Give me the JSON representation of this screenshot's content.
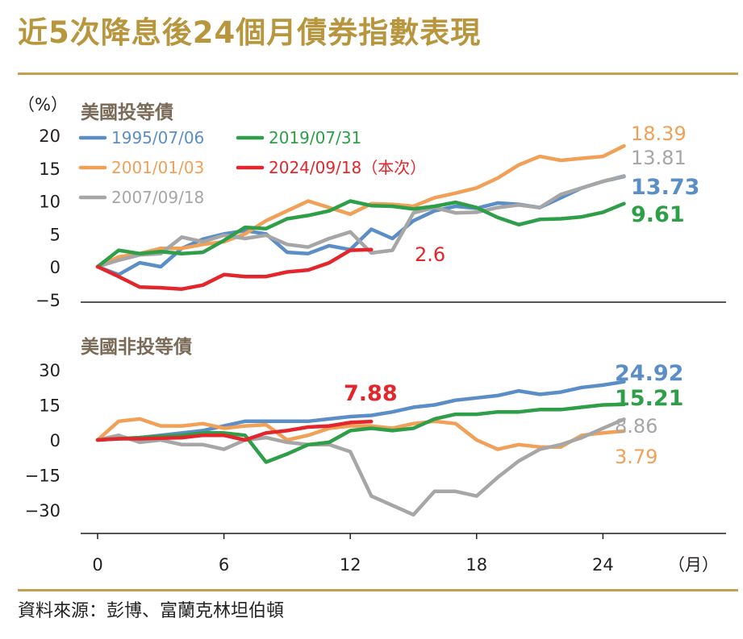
{
  "title": "近5次降息後24個月債券指數表現",
  "source": "資料來源：彭博、富蘭克林坦伯頓",
  "colors": {
    "s1995": "#5b8ec7",
    "s2001": "#f0a057",
    "s2007": "#a6a6a6",
    "s2019": "#2e9e48",
    "s2024": "#e3262b",
    "title": "#b8963e"
  },
  "chart_data": [
    {
      "type": "line",
      "title": "美國投等債",
      "ylabel": "（%）",
      "xlabel": "（月）",
      "xlim": [
        -1,
        28
      ],
      "ylim": [
        -7,
        20
      ],
      "yticks": [
        "20",
        "15",
        "10",
        "5",
        "0",
        "−5"
      ],
      "ytick_values": [
        20,
        15,
        10,
        5,
        0,
        -5
      ],
      "legend_placement": "top-left",
      "series": [
        {
          "name": "1995/07/06",
          "color": "#5b8ec7",
          "end_label": "13.73",
          "end_bold": true,
          "x": [
            0,
            1,
            2,
            3,
            4,
            5,
            6,
            7,
            8,
            9,
            10,
            11,
            12,
            13,
            14,
            15,
            16,
            17,
            18,
            19,
            20,
            21,
            22,
            23,
            24,
            25
          ],
          "y": [
            0,
            -1.2,
            0.6,
            0,
            2.8,
            4.2,
            5,
            5.5,
            5,
            2.2,
            2,
            3.2,
            2.6,
            5.7,
            4.3,
            7,
            8.5,
            9.2,
            8.9,
            9.7,
            9.5,
            9,
            10.5,
            12,
            13,
            13.73
          ]
        },
        {
          "name": "2001/01/03",
          "color": "#f0a057",
          "end_label": "18.39",
          "end_bold": false,
          "x": [
            0,
            1,
            2,
            3,
            4,
            5,
            6,
            7,
            8,
            9,
            10,
            11,
            12,
            13,
            14,
            15,
            16,
            17,
            18,
            19,
            20,
            21,
            22,
            23,
            24,
            25
          ],
          "y": [
            0,
            1.5,
            2,
            2.8,
            2.8,
            3.4,
            3.8,
            5,
            7,
            8.5,
            10,
            9,
            8,
            9.6,
            9.5,
            9.2,
            10.5,
            11.2,
            12,
            13.5,
            15.5,
            16.8,
            16.2,
            16.5,
            16.8,
            18.39
          ]
        },
        {
          "name": "2007/09/18",
          "color": "#a6a6a6",
          "end_label": "13.81",
          "end_bold": false,
          "x": [
            0,
            1,
            2,
            3,
            4,
            5,
            6,
            7,
            8,
            9,
            10,
            11,
            12,
            13,
            14,
            15,
            16,
            17,
            18,
            19,
            20,
            21,
            22,
            23,
            24,
            25
          ],
          "y": [
            0,
            1,
            1.8,
            2,
            4.5,
            3.8,
            4.8,
            4.3,
            4.8,
            3.4,
            3,
            4.3,
            5.3,
            2.1,
            2.5,
            8.2,
            9,
            8.2,
            8.3,
            9,
            9.4,
            9,
            11,
            12,
            13,
            13.81
          ]
        },
        {
          "name": "2019/07/31",
          "color": "#2e9e48",
          "end_label": "9.61",
          "end_bold": true,
          "x": [
            0,
            1,
            2,
            3,
            4,
            5,
            6,
            7,
            8,
            9,
            10,
            11,
            12,
            13,
            14,
            15,
            16,
            17,
            18,
            19,
            20,
            21,
            22,
            23,
            24,
            25
          ],
          "y": [
            0,
            2.5,
            2,
            2.3,
            2,
            2.2,
            4,
            6,
            5.8,
            7.3,
            7.8,
            8.5,
            10,
            9.3,
            9.2,
            8.8,
            9.2,
            9.8,
            9,
            7.5,
            6.4,
            7.2,
            7.3,
            7.6,
            8.3,
            9.61
          ]
        },
        {
          "name": "2024/09/18（本次）",
          "color": "#e3262b",
          "end_label": "2.6",
          "end_bold": false,
          "x": [
            0,
            1,
            2,
            3,
            4,
            5,
            6,
            7,
            8,
            9,
            10,
            11,
            12,
            13
          ],
          "y": [
            0,
            -1.5,
            -3.1,
            -3.2,
            -3.4,
            -2.8,
            -1.2,
            -1.5,
            -1.5,
            -0.8,
            -0.5,
            0.6,
            2.5,
            2.6
          ]
        }
      ]
    },
    {
      "type": "line",
      "title": "美國非投等債",
      "xlabel": "（月）",
      "xlim": [
        -1,
        28
      ],
      "ylim": [
        -40,
        30
      ],
      "yticks": [
        "30",
        "15",
        "0",
        "−15",
        "−30"
      ],
      "ytick_values": [
        30,
        15,
        0,
        -15,
        -30
      ],
      "xticks": [
        "0",
        "6",
        "12",
        "18",
        "24"
      ],
      "xtick_values": [
        0,
        6,
        12,
        18,
        24
      ],
      "series": [
        {
          "name": "1995/07/06",
          "color": "#5b8ec7",
          "end_label": "24.92",
          "end_bold": true,
          "x": [
            0,
            1,
            2,
            3,
            4,
            5,
            6,
            7,
            8,
            9,
            10,
            11,
            12,
            13,
            14,
            15,
            16,
            17,
            18,
            19,
            20,
            21,
            22,
            23,
            24,
            25
          ],
          "y": [
            0,
            0.5,
            1,
            2,
            3,
            4,
            6,
            8,
            8,
            8,
            8,
            9,
            10,
            10.5,
            12,
            14,
            15,
            17,
            18,
            19,
            21,
            19.5,
            20.5,
            22.5,
            23.5,
            24.92
          ]
        },
        {
          "name": "2001/01/03",
          "color": "#f0a057",
          "end_label": "3.79",
          "end_bold": false,
          "x": [
            0,
            1,
            2,
            3,
            4,
            5,
            6,
            7,
            8,
            9,
            10,
            11,
            12,
            13,
            14,
            15,
            16,
            17,
            18,
            19,
            20,
            21,
            22,
            23,
            24,
            25
          ],
          "y": [
            0,
            8,
            9,
            6,
            6,
            7,
            5,
            6,
            6.5,
            0,
            2,
            5,
            6,
            6,
            5,
            7,
            8,
            7,
            0,
            -4,
            -2,
            -3,
            -3,
            2,
            3,
            3.79
          ]
        },
        {
          "name": "2007/09/18",
          "color": "#a6a6a6",
          "end_label": "8.86",
          "end_bold": false,
          "x": [
            0,
            1,
            2,
            3,
            4,
            5,
            6,
            7,
            8,
            9,
            10,
            11,
            12,
            13,
            14,
            15,
            16,
            17,
            18,
            19,
            20,
            21,
            22,
            23,
            24,
            25
          ],
          "y": [
            0,
            2,
            -1,
            0,
            -2,
            -2,
            -4,
            0,
            1,
            -1,
            -2,
            -2,
            -5,
            -24,
            -28,
            -32,
            -22,
            -22,
            -24,
            -16,
            -9,
            -4,
            -2,
            1,
            5,
            8.86
          ]
        },
        {
          "name": "2019/07/31",
          "color": "#2e9e48",
          "end_label": "15.21",
          "end_bold": true,
          "x": [
            0,
            1,
            2,
            3,
            4,
            5,
            6,
            7,
            8,
            9,
            10,
            11,
            12,
            13,
            14,
            15,
            16,
            17,
            18,
            19,
            20,
            21,
            22,
            23,
            24,
            25
          ],
          "y": [
            0,
            0.5,
            1,
            1.5,
            2,
            3,
            3,
            2,
            -9.5,
            -6,
            -2,
            -1,
            4,
            5,
            4,
            5,
            9,
            11,
            11,
            12,
            12,
            13,
            13,
            14,
            15,
            15.21
          ]
        },
        {
          "name": "2024/09/18（本次）",
          "color": "#e3262b",
          "end_label": "7.88",
          "end_bold": true,
          "x": [
            0,
            1,
            2,
            3,
            4,
            5,
            6,
            7,
            8,
            9,
            10,
            11,
            12,
            13
          ],
          "y": [
            0,
            0.5,
            0.5,
            0.8,
            1,
            2,
            2,
            0,
            3,
            4,
            5.5,
            6,
            7.5,
            7.88
          ]
        }
      ]
    }
  ]
}
